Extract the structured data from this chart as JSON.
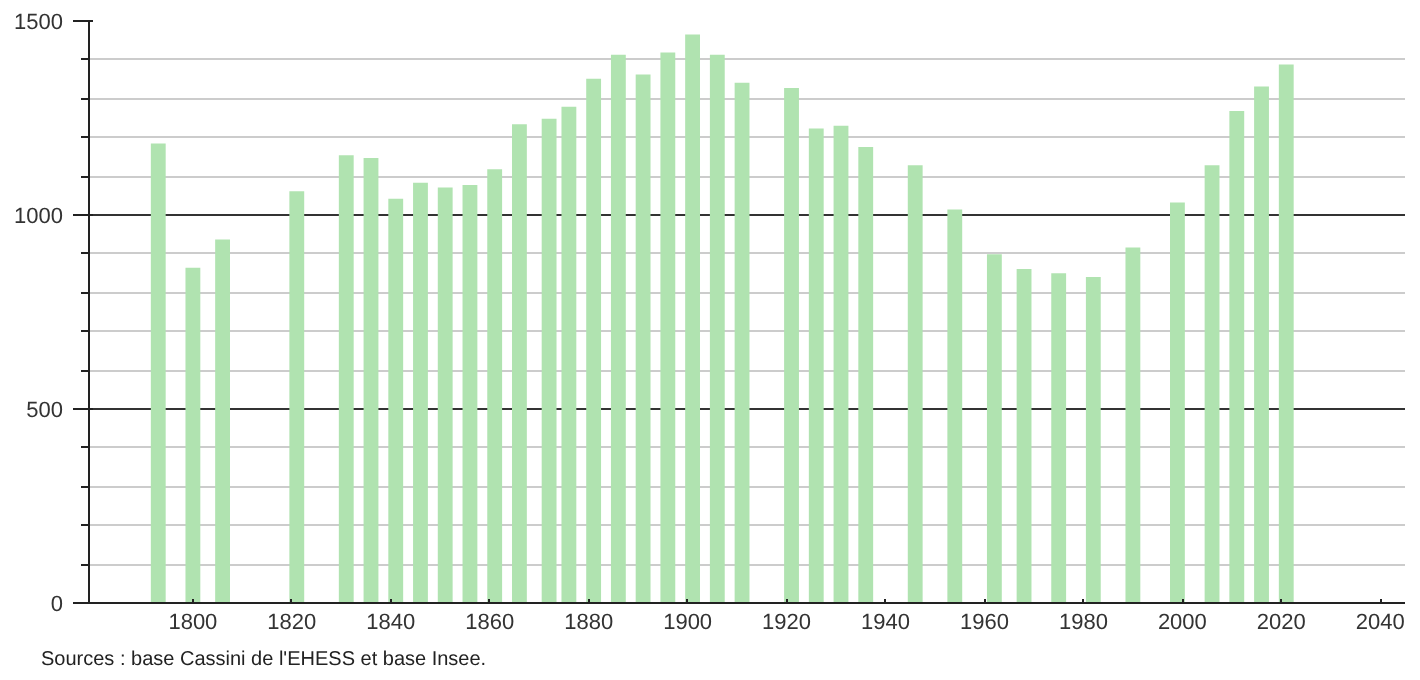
{
  "chart_data": {
    "type": "bar",
    "x": [
      1793,
      1800,
      1806,
      1821,
      1831,
      1836,
      1841,
      1846,
      1851,
      1856,
      1861,
      1866,
      1872,
      1876,
      1881,
      1886,
      1891,
      1896,
      1901,
      1906,
      1911,
      1921,
      1926,
      1931,
      1936,
      1946,
      1954,
      1962,
      1968,
      1975,
      1982,
      1990,
      1999,
      2006,
      2011,
      2016,
      2021
    ],
    "values": [
      1184,
      864,
      937,
      1061,
      1154,
      1147,
      1042,
      1083,
      1071,
      1077,
      1118,
      1234,
      1248,
      1279,
      1351,
      1413,
      1362,
      1419,
      1465,
      1413,
      1341,
      1327,
      1223,
      1230,
      1175,
      1128,
      1014,
      899,
      861,
      850,
      840,
      916,
      1032,
      1128,
      1268,
      1331,
      1388
    ],
    "color": "#b0e3b0",
    "xlim": [
      1779,
      2045
    ],
    "xticks": [
      1800,
      1820,
      1840,
      1860,
      1880,
      1900,
      1920,
      1940,
      1960,
      1980,
      2000,
      2020,
      2040
    ],
    "ylim": [
      0,
      1500
    ],
    "yticks": [
      0,
      500,
      1000,
      1500
    ],
    "grid": "y",
    "annotations": [
      "Sources : base Cassini de l'EHESS et base Insee."
    ]
  }
}
